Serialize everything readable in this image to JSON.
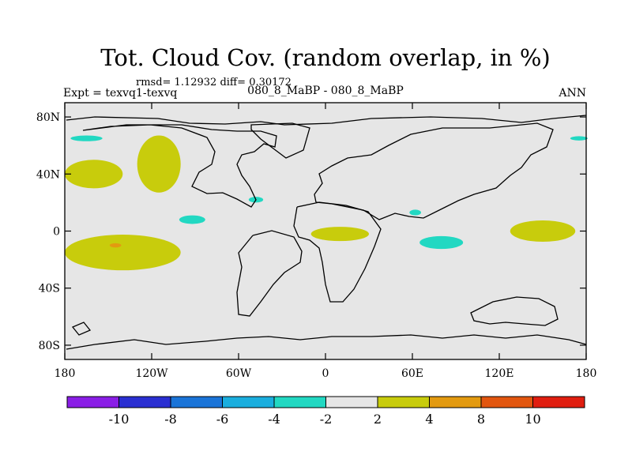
{
  "chart_data": {
    "type": "heatmap",
    "title": "Tot. Cloud Cov. (random overlap, in %)",
    "stats_text": "rmsd= 1.12932 diff= 0.30172",
    "left_label": "Expt = texvq1-texvq",
    "center_label": "080_8_MaBP - 080_8_MaBP",
    "right_label": "ANN",
    "x_axis": {
      "range": [
        -180,
        180
      ],
      "ticks": [
        -180,
        -120,
        -60,
        0,
        60,
        120,
        180
      ],
      "tick_labels": [
        "180",
        "120W",
        "60W",
        "0",
        "60E",
        "120E",
        "180"
      ]
    },
    "y_axis": {
      "range": [
        -90,
        90
      ],
      "ticks": [
        80,
        40,
        0,
        -40,
        -80
      ],
      "tick_labels": [
        "80N",
        "40N",
        "0",
        "40S",
        "80S"
      ]
    },
    "colorbar": {
      "colors": [
        "#8a1ee6",
        "#2a2fd2",
        "#1a74d8",
        "#1aaede",
        "#22d8c2",
        "#e6e6e6",
        "#c8cc0c",
        "#e39a10",
        "#e2560f",
        "#e01e10"
      ],
      "tick_labels": [
        "-10",
        "-8",
        "-6",
        "-4",
        "-2",
        "2",
        "4",
        "8",
        "10"
      ]
    },
    "anomaly_regions": [
      {
        "name": "north-pacific-positive",
        "class": "2 to 4",
        "color": "#c8cc0c",
        "lon_center": -160,
        "lat_center": 40,
        "lon_span": 40,
        "lat_span": 20
      },
      {
        "name": "northeast-pacific-positive",
        "class": "2 to 4",
        "color": "#c8cc0c",
        "lon_center": -115,
        "lat_center": 47,
        "lon_span": 30,
        "lat_span": 40
      },
      {
        "name": "south-pacific-positive",
        "class": "2 to 4",
        "color": "#c8cc0c",
        "lon_center": -140,
        "lat_center": -15,
        "lon_span": 80,
        "lat_span": 25
      },
      {
        "name": "south-pacific-core",
        "class": "4 to 8",
        "color": "#e39a10",
        "lon_center": -145,
        "lat_center": -10,
        "lon_span": 8,
        "lat_span": 3
      },
      {
        "name": "equatorial-africa-positive",
        "class": "2 to 4",
        "color": "#c8cc0c",
        "lon_center": 10,
        "lat_center": -2,
        "lon_span": 40,
        "lat_span": 10
      },
      {
        "name": "west-pacific-positive",
        "class": "2 to 4",
        "color": "#c8cc0c",
        "lon_center": 150,
        "lat_center": 0,
        "lon_span": 45,
        "lat_span": 15
      },
      {
        "name": "arctic-pacific-negative",
        "class": "-4 to -2",
        "color": "#22d8c2",
        "lon_center": -165,
        "lat_center": 65,
        "lon_span": 22,
        "lat_span": 4
      },
      {
        "name": "arctic-atlantic-negative",
        "class": "-4 to -2",
        "color": "#22d8c2",
        "lon_center": 175,
        "lat_center": 65,
        "lon_span": 12,
        "lat_span": 3
      },
      {
        "name": "eastern-pacific-negative",
        "class": "-4 to -2",
        "color": "#22d8c2",
        "lon_center": -92,
        "lat_center": 8,
        "lon_span": 18,
        "lat_span": 6
      },
      {
        "name": "gulf-of-mexico-negative",
        "class": "-4 to -2",
        "color": "#22d8c2",
        "lon_center": -48,
        "lat_center": 22,
        "lon_span": 10,
        "lat_span": 4
      },
      {
        "name": "indian-ocean-negative",
        "class": "-4 to -2",
        "color": "#22d8c2",
        "lon_center": 80,
        "lat_center": -8,
        "lon_span": 30,
        "lat_span": 9
      },
      {
        "name": "arabian-sea-negative",
        "class": "-4 to -2",
        "color": "#22d8c2",
        "lon_center": 62,
        "lat_center": 13,
        "lon_span": 8,
        "lat_span": 4
      }
    ]
  }
}
